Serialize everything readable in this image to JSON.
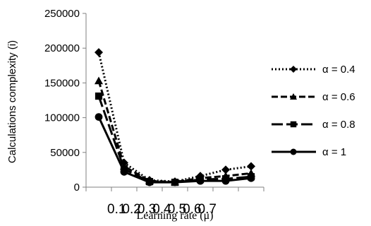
{
  "chart_data": {
    "type": "line",
    "xlabel": "Learning rate (μ)",
    "ylabel": "Calculations complexity (i)",
    "x": [
      0.1,
      0.2,
      0.3,
      0.4,
      0.5,
      0.6,
      0.7
    ],
    "x_tick_labels": [
      "0.1",
      "0.2",
      "0.3",
      "0.4",
      "0.5",
      "0.6",
      "0.7"
    ],
    "ylim": [
      0,
      250000
    ],
    "y_ticks": [
      0,
      50000,
      100000,
      150000,
      200000,
      250000
    ],
    "y_tick_labels": [
      "0",
      "50000",
      "100000",
      "150000",
      "200000",
      "250000"
    ],
    "grid": false,
    "legend_position": "right",
    "series": [
      {
        "name": "α = 0.4",
        "marker": "diamond",
        "dash": "dotted",
        "values": [
          194000,
          35000,
          10000,
          8000,
          16000,
          25000,
          30000
        ]
      },
      {
        "name": "α = 0.6",
        "marker": "triangle",
        "dash": "dashed",
        "values": [
          153000,
          30000,
          9000,
          7500,
          13000,
          16000,
          20000
        ]
      },
      {
        "name": "α = 0.8",
        "marker": "square",
        "dash": "longdash",
        "values": [
          131000,
          26000,
          8000,
          7000,
          11000,
          12000,
          15000
        ]
      },
      {
        "name": "α = 1",
        "marker": "circle",
        "dash": "solid",
        "values": [
          101000,
          22000,
          7000,
          7000,
          9000,
          9000,
          13000
        ]
      }
    ]
  }
}
